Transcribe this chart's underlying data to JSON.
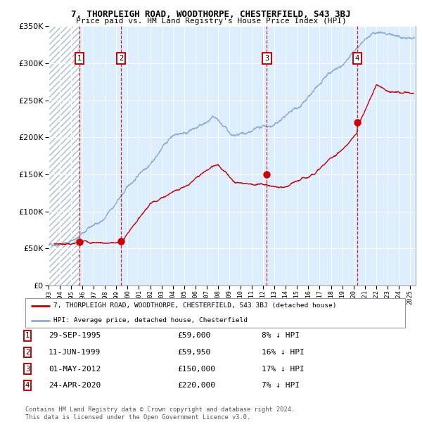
{
  "title": "7, THORPLEIGH ROAD, WOODTHORPE, CHESTERFIELD, S43 3BJ",
  "subtitle": "Price paid vs. HM Land Registry's House Price Index (HPI)",
  "sales": [
    {
      "date_str": "29-SEP-1995",
      "date_num": 1995.747,
      "price": 59000,
      "label": "1"
    },
    {
      "date_str": "11-JUN-1999",
      "date_num": 1999.44,
      "price": 59950,
      "label": "2"
    },
    {
      "date_str": "01-MAY-2012",
      "date_num": 2012.33,
      "price": 150000,
      "label": "3"
    },
    {
      "date_str": "24-APR-2020",
      "date_num": 2020.315,
      "price": 220000,
      "label": "4"
    }
  ],
  "table_rows": [
    {
      "num": "1",
      "date": "29-SEP-1995",
      "price": "£59,000",
      "hpi": "8% ↓ HPI"
    },
    {
      "num": "2",
      "date": "11-JUN-1999",
      "price": "£59,950",
      "hpi": "16% ↓ HPI"
    },
    {
      "num": "3",
      "date": "01-MAY-2012",
      "price": "£150,000",
      "hpi": "17% ↓ HPI"
    },
    {
      "num": "4",
      "date": "24-APR-2020",
      "price": "£220,000",
      "hpi": "7% ↓ HPI"
    }
  ],
  "legend_line1": "7, THORPLEIGH ROAD, WOODTHORPE, CHESTERFIELD, S43 3BJ (detached house)",
  "legend_line2": "HPI: Average price, detached house, Chesterfield",
  "footer_line1": "Contains HM Land Registry data © Crown copyright and database right 2024.",
  "footer_line2": "This data is licensed under the Open Government Licence v3.0.",
  "red_color": "#cc0000",
  "blue_color": "#88aadd",
  "ylim": [
    0,
    350000
  ],
  "xmin": 1993.0,
  "xmax": 2025.5
}
